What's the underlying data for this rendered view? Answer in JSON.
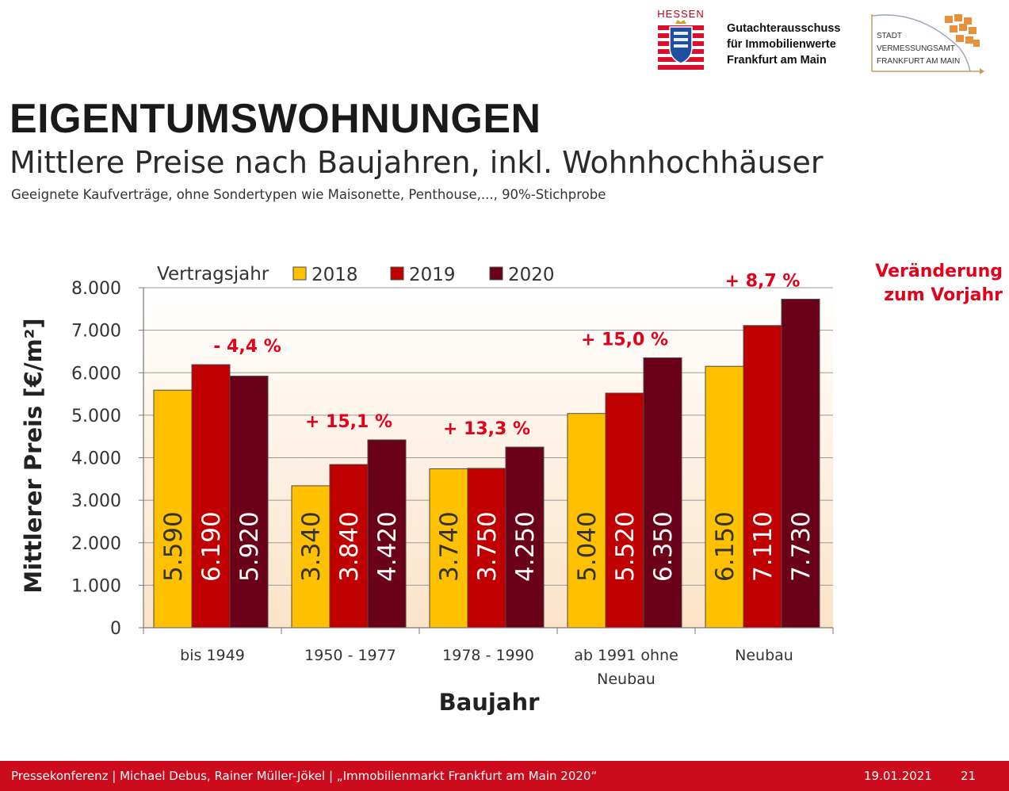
{
  "header": {
    "hessen_label": "HESSEN",
    "org_lines": [
      "Gutachterausschuss",
      "für Immobilienwerte",
      "Frankfurt am Main"
    ],
    "logo_lines": [
      "STADT",
      "VERMESSUNGSAMT",
      "FRANKFURT AM MAIN"
    ]
  },
  "title": "EIGENTUMSWOHNUNGEN",
  "subtitle": "Mittlere Preise nach Baujahren, inkl. Wohnhochhäuser",
  "note": "Geeignete Kaufverträge, ohne Sondertypen wie Maisonette, Penthouse,..., 90%-Stichprobe",
  "change_note": [
    "Veränderung",
    "zum Vorjahr"
  ],
  "chart_data": {
    "type": "bar",
    "categories": [
      [
        "bis 1949"
      ],
      [
        "1950 - 1977"
      ],
      [
        "1978 - 1990"
      ],
      [
        "ab 1991 ohne",
        "Neubau"
      ],
      [
        "Neubau"
      ]
    ],
    "series": [
      {
        "name": "2018",
        "color": "#ffc000",
        "values": [
          5590,
          3340,
          3740,
          5040,
          6150
        ]
      },
      {
        "name": "2019",
        "color": "#c00000",
        "values": [
          6190,
          3840,
          3750,
          5520,
          7110
        ]
      },
      {
        "name": "2020",
        "color": "#6b0019",
        "values": [
          5920,
          4420,
          4250,
          6350,
          7730
        ]
      }
    ],
    "value_labels": [
      [
        "5.590",
        "3.340",
        "3.740",
        "5.040",
        "6.150"
      ],
      [
        "6.190",
        "3.840",
        "3.750",
        "5.520",
        "7.110"
      ],
      [
        "5.920",
        "4.420",
        "4.250",
        "6.350",
        "7.730"
      ]
    ],
    "changes": [
      "- 4,4 %",
      "+ 15,1 %",
      "+ 13,3 %",
      "+ 15,0 %",
      "+ 8,7 %"
    ],
    "legend_title": "Vertragsjahr",
    "legend_position": "top",
    "xlabel": "Baujahr",
    "ylabel": "Mittlerer Preis [€/m²]",
    "ylim": [
      0,
      8000
    ],
    "yticks": [
      0,
      1000,
      2000,
      3000,
      4000,
      5000,
      6000,
      7000,
      8000
    ],
    "ytick_labels": [
      "0",
      "1.000",
      "2.000",
      "3.000",
      "4.000",
      "5.000",
      "6.000",
      "7.000",
      "8.000"
    ],
    "grid": true
  },
  "footer": {
    "text": "Pressekonferenz | Michael Debus, Rainer Müller-Jökel | „Immobilienmarkt Frankfurt am Main 2020“",
    "date": "19.01.2021",
    "page": "21"
  }
}
